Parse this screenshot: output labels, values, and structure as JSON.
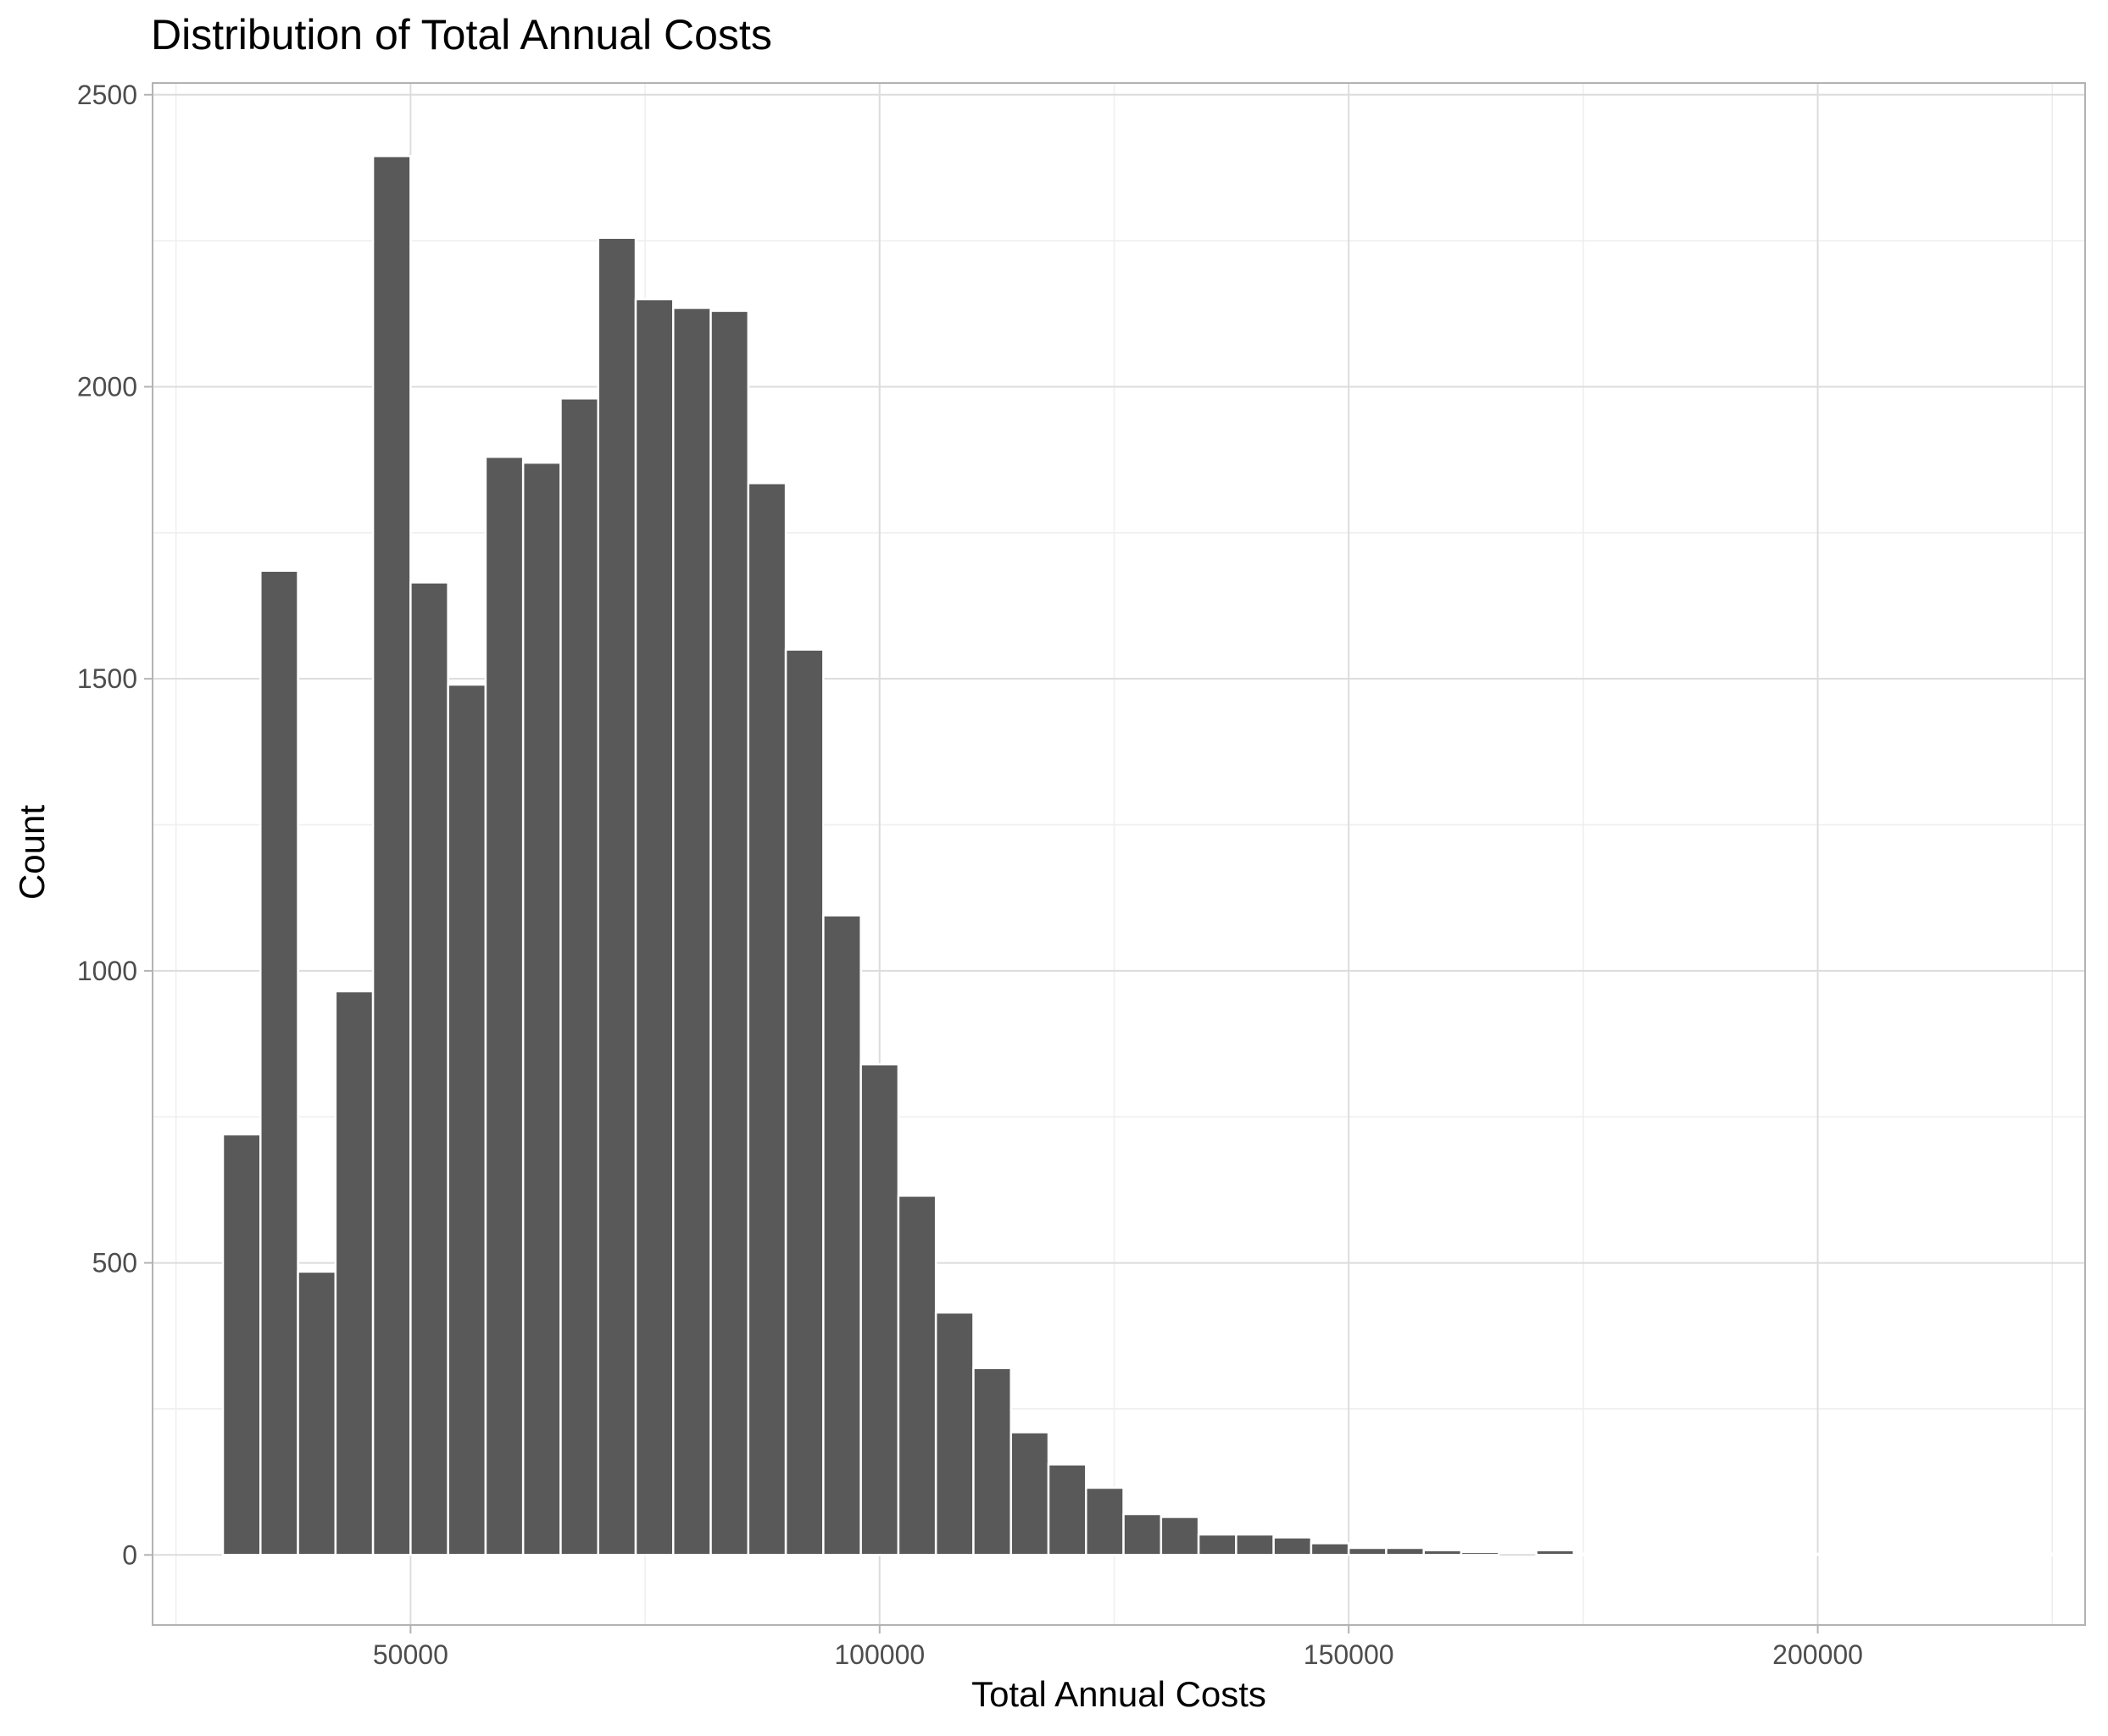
{
  "chart_data": {
    "type": "bar",
    "subtype": "histogram",
    "title": "Distribution of Total Annual Costs",
    "xlabel": "Total Annual Costs",
    "ylabel": "Count",
    "xlim": [
      22500,
      228500
    ],
    "ylim": [
      -120,
      2520
    ],
    "x_ticks": [
      50000,
      100000,
      150000,
      200000
    ],
    "x_minor_ticks": [
      25000,
      75000,
      125000,
      175000,
      225000
    ],
    "y_ticks": [
      0,
      500,
      1000,
      1500,
      2000,
      2500
    ],
    "y_minor_ticks": [
      250,
      750,
      1250,
      1750,
      2250
    ],
    "bin_width": 4000,
    "bins_start": 30000,
    "values": [
      720,
      1685,
      485,
      965,
      2395,
      1665,
      1490,
      1880,
      1870,
      1980,
      2255,
      2150,
      2135,
      2130,
      1835,
      1550,
      1095,
      840,
      615,
      415,
      320,
      210,
      155,
      115,
      70,
      65,
      35,
      35,
      30,
      20,
      12,
      12,
      8,
      5,
      0,
      8,
      2,
      2,
      2,
      2,
      2,
      2,
      2,
      2,
      2,
      2,
      2,
      2,
      2,
      2
    ],
    "grid": true,
    "legend": "none",
    "colors": {
      "bar": "#595959",
      "bar_outline": "#ffffff",
      "grid_major": "#dcdcdc",
      "grid_minor": "#eeeeee",
      "background": "#ffffff"
    }
  }
}
